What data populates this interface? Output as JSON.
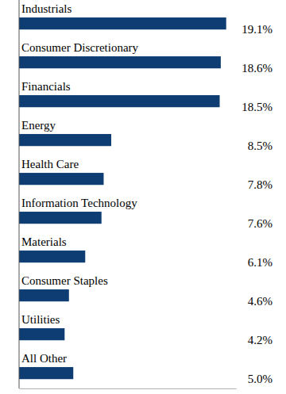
{
  "chart_data": {
    "type": "bar",
    "orientation": "horizontal",
    "categories": [
      "Industrials",
      "Consumer Discretionary",
      "Financials",
      "Energy",
      "Health Care",
      "Information Technology",
      "Materials",
      "Consumer Staples",
      "Utilities",
      "All Other"
    ],
    "values": [
      19.1,
      18.6,
      18.5,
      8.5,
      7.8,
      7.6,
      6.1,
      4.6,
      4.2,
      5.0
    ],
    "value_labels": [
      "19.1%",
      "18.6%",
      "18.5%",
      "8.5%",
      "7.8%",
      "7.6%",
      "6.1%",
      "4.6%",
      "4.2%",
      "5.0%"
    ],
    "color": "#0e3d73",
    "xlim": [
      0,
      20
    ],
    "xticks": [],
    "data_labels": true,
    "tick_labels": "y",
    "grid": false
  }
}
